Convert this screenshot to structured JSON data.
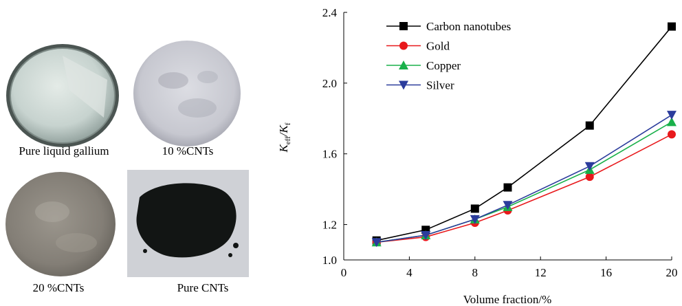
{
  "panels": [
    {
      "caption": "Pure liquid gallium",
      "kind": "gallium-disc"
    },
    {
      "caption": "10 %CNTs",
      "kind": "light-disc"
    },
    {
      "caption": "20 %CNTs",
      "kind": "dark-disc"
    },
    {
      "caption": "Pure CNTs",
      "kind": "powder"
    }
  ],
  "chart_data": {
    "type": "line",
    "title": "",
    "xlabel": "Volume fraction/%",
    "ylabel": {
      "main": "K",
      "sub1": "eff",
      "sep": "/K",
      "sub2": "f"
    },
    "xlim": [
      0,
      20
    ],
    "ylim": [
      1.0,
      2.4
    ],
    "xticks": [
      0,
      4,
      8,
      12,
      16,
      20
    ],
    "yticks": [
      1.0,
      1.2,
      1.6,
      2.0,
      2.4
    ],
    "grid": false,
    "legend_position": "top-left",
    "x": [
      2,
      5,
      8,
      10,
      15,
      20
    ],
    "series": [
      {
        "name": "Carbon nanotubes",
        "color": "#000000",
        "marker": "square",
        "values": [
          1.11,
          1.17,
          1.29,
          1.41,
          1.76,
          2.32
        ]
      },
      {
        "name": "Gold",
        "color": "#e8191c",
        "marker": "circle",
        "values": [
          1.1,
          1.13,
          1.21,
          1.28,
          1.47,
          1.71
        ]
      },
      {
        "name": "Copper",
        "color": "#19b04a",
        "marker": "triangle-up",
        "values": [
          1.1,
          1.14,
          1.23,
          1.3,
          1.51,
          1.78
        ]
      },
      {
        "name": "Silver",
        "color": "#2b3c9c",
        "marker": "triangle-down",
        "values": [
          1.1,
          1.14,
          1.23,
          1.31,
          1.53,
          1.82
        ]
      }
    ]
  }
}
